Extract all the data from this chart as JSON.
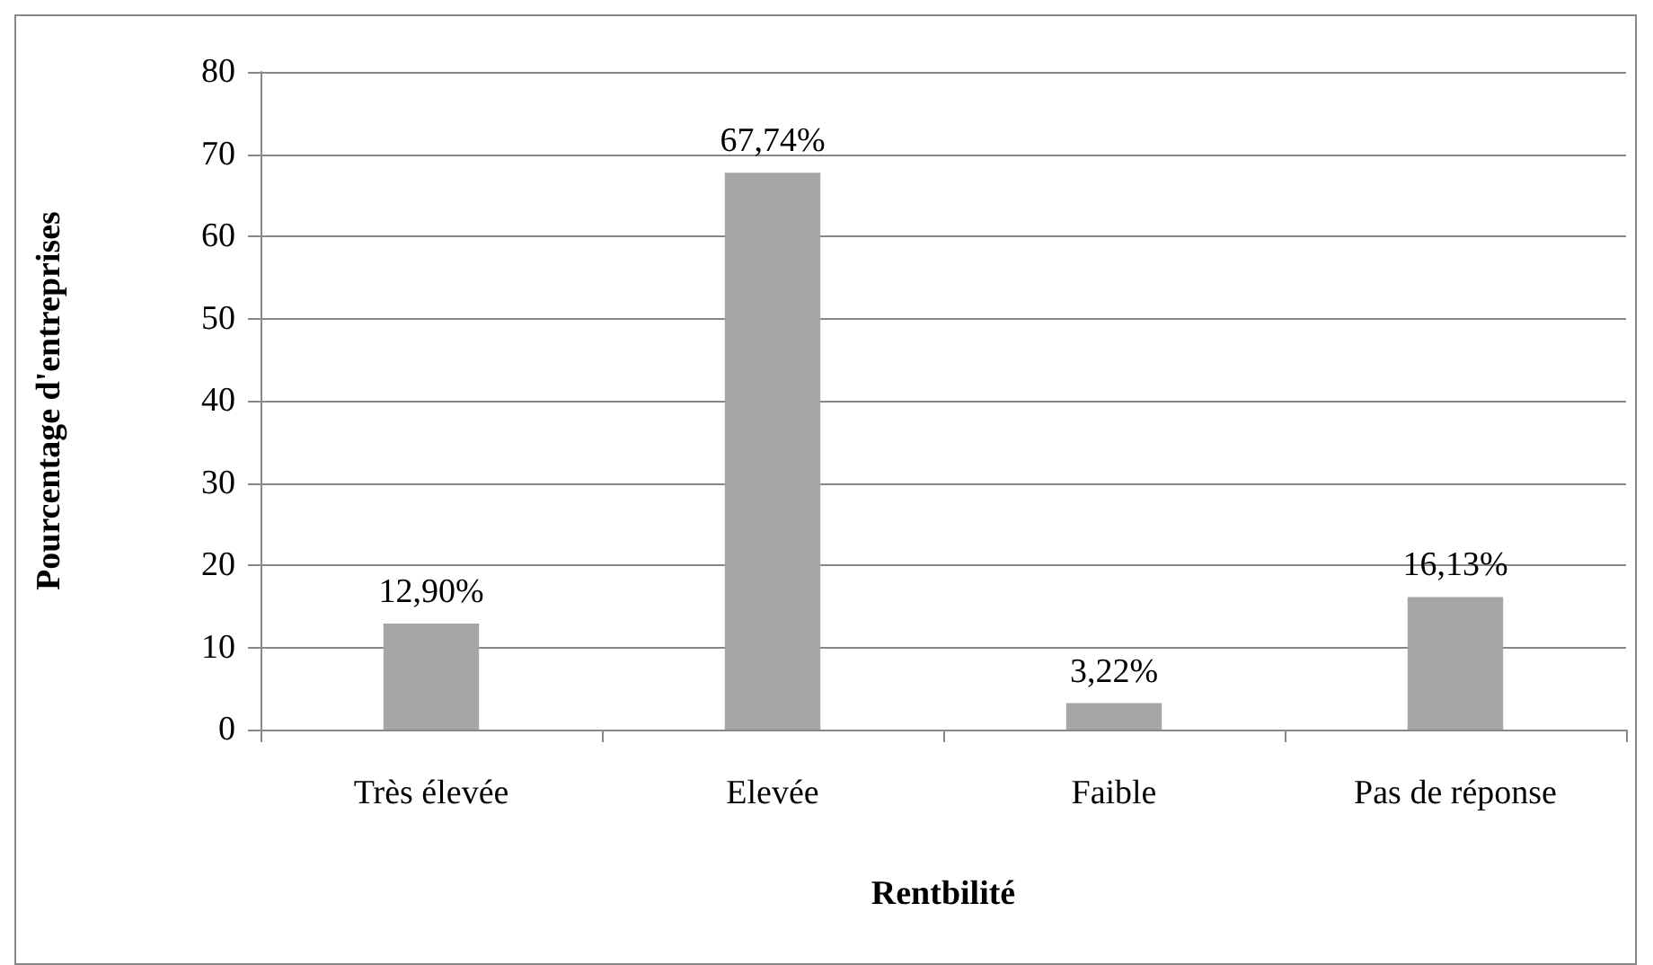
{
  "chart_data": {
    "type": "bar",
    "xlabel": "Rentbilité",
    "ylabel": "Pourcentage d'entreprises",
    "categories": [
      "Très élevée",
      "Elevée",
      "Faible",
      "Pas de réponse"
    ],
    "values": [
      12.9,
      67.74,
      3.22,
      16.13
    ],
    "value_labels": [
      "12,90%",
      "67,74%",
      "3,22%",
      "16,13%"
    ],
    "color": "#a6a6a6",
    "ylim": [
      0,
      80
    ],
    "yticks": [
      0,
      10,
      20,
      30,
      40,
      50,
      60,
      70,
      80
    ],
    "grid": "y"
  }
}
